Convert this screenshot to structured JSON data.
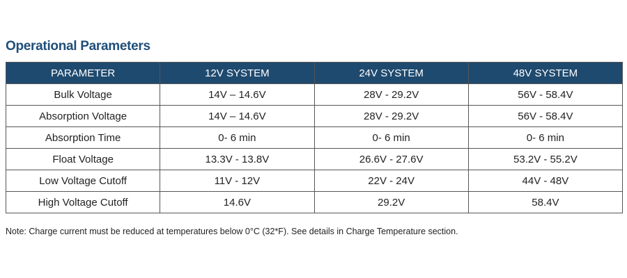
{
  "title": "Operational Parameters",
  "table": {
    "header": [
      "PARAMETER",
      "12V SYSTEM",
      "24V SYSTEM",
      "48V SYSTEM"
    ],
    "rows": [
      [
        "Bulk Voltage",
        "14V – 14.6V",
        "28V - 29.2V",
        "56V - 58.4V"
      ],
      [
        "Absorption Voltage",
        "14V – 14.6V",
        "28V - 29.2V",
        "56V - 58.4V"
      ],
      [
        "Absorption Time",
        "0- 6 min",
        "0- 6 min",
        "0- 6 min"
      ],
      [
        "Float Voltage",
        "13.3V - 13.8V",
        "26.6V - 27.6V",
        "53.2V - 55.2V"
      ],
      [
        "Low Voltage Cutoff",
        "11V - 12V",
        "22V - 24V",
        "44V - 48V"
      ],
      [
        "High Voltage Cutoff",
        "14.6V",
        "29.2V",
        "58.4V"
      ]
    ]
  },
  "note": "Note: Charge current must be reduced at temperatures below 0°C (32*F). See details in Charge Temperature section."
}
